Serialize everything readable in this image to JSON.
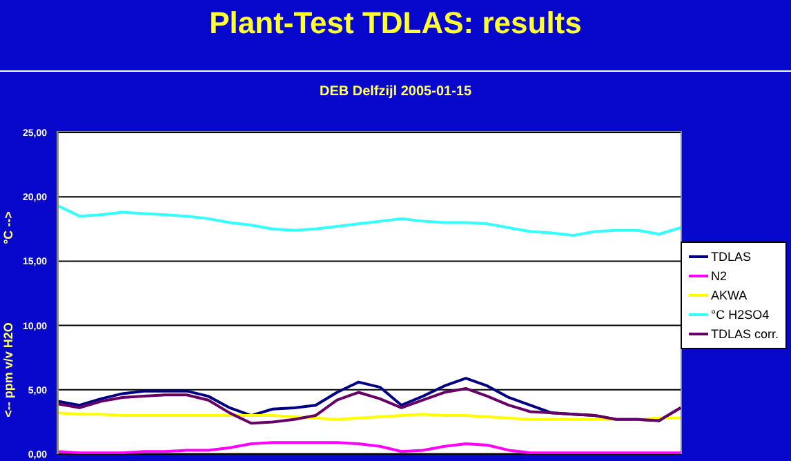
{
  "chart_data": {
    "type": "line",
    "title": "Plant-Test TDLAS: results",
    "subtitle": "DEB Delfzijl 2005-01-15",
    "ylabel": "<-- ppm v/v H2O",
    "annotations": [
      "°C -->"
    ],
    "categories": [
      null,
      null,
      null,
      null,
      null,
      null,
      null,
      null,
      null,
      null,
      null,
      null,
      null,
      null,
      null,
      null,
      null,
      null,
      null,
      null,
      null,
      null,
      null,
      null,
      null,
      null,
      null,
      null,
      null,
      null
    ],
    "series": [
      {
        "name": "TDLAS",
        "color": "#000080",
        "values": [
          4.1,
          3.8,
          4.3,
          4.7,
          4.9,
          4.9,
          4.9,
          4.5,
          3.6,
          3.0,
          3.5,
          3.6,
          3.8,
          4.8,
          5.6,
          5.2,
          3.8,
          4.5,
          5.3,
          5.9,
          5.3,
          4.4,
          3.8,
          3.2,
          3.1,
          3.0,
          2.7,
          2.7,
          2.6,
          3.6
        ]
      },
      {
        "name": "N2",
        "color": "#ff00ff",
        "values": [
          0.2,
          0.1,
          0.1,
          0.1,
          0.2,
          0.2,
          0.3,
          0.3,
          0.5,
          0.8,
          0.9,
          0.9,
          0.9,
          0.9,
          0.8,
          0.6,
          0.2,
          0.3,
          0.6,
          0.8,
          0.7,
          0.3,
          0.1,
          0.1,
          0.1,
          0.1,
          0.1,
          0.1,
          0.1,
          0.1
        ]
      },
      {
        "name": "AKWA",
        "color": "#ffff00",
        "values": [
          3.2,
          3.1,
          3.1,
          3.0,
          3.0,
          3.0,
          3.0,
          3.0,
          3.0,
          3.0,
          3.0,
          2.9,
          2.8,
          2.7,
          2.8,
          2.9,
          3.0,
          3.1,
          3.0,
          3.0,
          2.9,
          2.8,
          2.7,
          2.7,
          2.7,
          2.7,
          2.7,
          2.7,
          2.8,
          2.8
        ]
      },
      {
        "name": "°C H2SO4",
        "color": "#33ffff",
        "values": [
          19.3,
          18.5,
          18.6,
          18.8,
          18.7,
          18.6,
          18.5,
          18.3,
          18.0,
          17.8,
          17.5,
          17.4,
          17.5,
          17.7,
          17.9,
          18.1,
          18.3,
          18.1,
          18.0,
          18.0,
          17.9,
          17.6,
          17.3,
          17.2,
          17.0,
          17.3,
          17.4,
          17.4,
          17.1,
          17.6
        ]
      },
      {
        "name": "TDLAS corr.",
        "color": "#660066",
        "values": [
          3.9,
          3.6,
          4.1,
          4.4,
          4.5,
          4.6,
          4.6,
          4.2,
          3.2,
          2.4,
          2.5,
          2.7,
          3.0,
          4.2,
          4.8,
          4.3,
          3.6,
          4.2,
          4.8,
          5.1,
          4.5,
          3.8,
          3.3,
          3.2,
          3.1,
          3.0,
          2.7,
          2.7,
          2.6,
          3.6
        ]
      }
    ],
    "ylim": [
      0,
      25
    ],
    "yticks": [
      {
        "value": 0,
        "label": "0,00"
      },
      {
        "value": 5,
        "label": "5,00"
      },
      {
        "value": 10,
        "label": "10,00"
      },
      {
        "value": 15,
        "label": "15,00"
      },
      {
        "value": 20,
        "label": "20,00"
      },
      {
        "value": 25,
        "label": "25,00"
      }
    ],
    "tick_labels": "y",
    "grid": "y",
    "legend": "right",
    "marker": "none",
    "line_style": "solid"
  }
}
